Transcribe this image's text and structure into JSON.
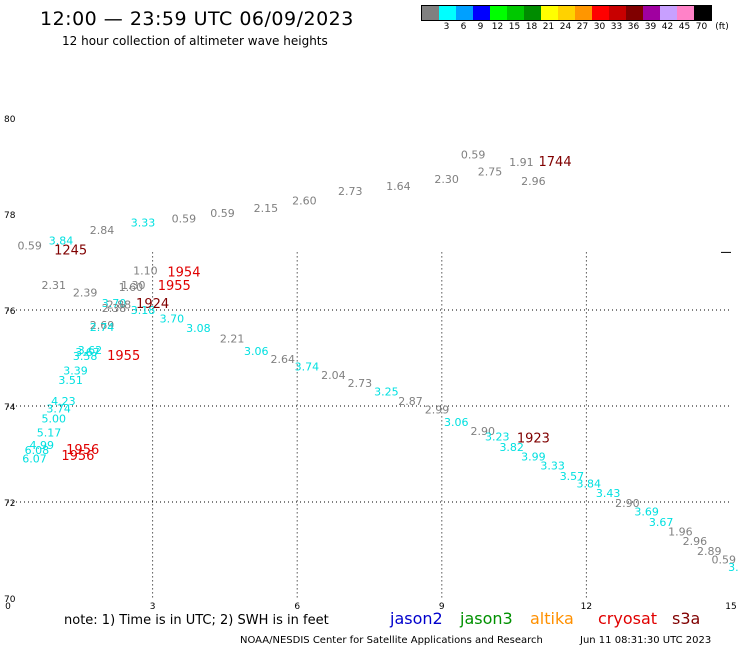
{
  "header": {
    "title": "12:00 — 23:59 UTC 06/09/2023",
    "subtitle": "12 hour collection of altimeter wave heights"
  },
  "legend": {
    "unit": "(ft)",
    "colors": [
      "#808080",
      "#00ffff",
      "#00a0ff",
      "#0000ff",
      "#00ff00",
      "#00c800",
      "#008c00",
      "#ffff00",
      "#ffd200",
      "#ff9600",
      "#ff0000",
      "#c80000",
      "#800000",
      "#a000a0",
      "#c8a0ff",
      "#ff82c8",
      "#000000"
    ],
    "labels": [
      "3",
      "6",
      "9",
      "12",
      "15",
      "18",
      "21",
      "24",
      "27",
      "30",
      "33",
      "36",
      "39",
      "42",
      "45",
      "70"
    ]
  },
  "map": {
    "lat_ticks": [
      "80",
      "78",
      "76",
      "74",
      "72",
      "70"
    ],
    "lon_ticks": [
      "0",
      "3",
      "6",
      "9",
      "12",
      "15"
    ],
    "colors": {
      "gray": "#808080",
      "cyan": "#00e0e0",
      "red": "#e00000",
      "darkred": "#800000"
    },
    "wave_heights": [
      {
        "v": "0.59",
        "c": "gray",
        "lon": 9.65,
        "lat": 79.16
      },
      {
        "v": "1.91",
        "c": "gray",
        "lon": 10.65,
        "lat": 79.0
      },
      {
        "v": "2.96",
        "c": "gray",
        "lon": 10.9,
        "lat": 78.6
      },
      {
        "v": "2.75",
        "c": "gray",
        "lon": 10.0,
        "lat": 78.8
      },
      {
        "v": "2.30",
        "c": "gray",
        "lon": 9.1,
        "lat": 78.65
      },
      {
        "v": "1.64",
        "c": "gray",
        "lon": 8.1,
        "lat": 78.5
      },
      {
        "v": "2.73",
        "c": "gray",
        "lon": 7.1,
        "lat": 78.4
      },
      {
        "v": "2.60",
        "c": "gray",
        "lon": 6.15,
        "lat": 78.2
      },
      {
        "v": "2.15",
        "c": "gray",
        "lon": 5.35,
        "lat": 78.04
      },
      {
        "v": "0.59",
        "c": "gray",
        "lon": 4.45,
        "lat": 77.94
      },
      {
        "v": "0.59",
        "c": "gray",
        "lon": 3.65,
        "lat": 77.82
      },
      {
        "v": "3.33",
        "c": "cyan",
        "lon": 2.8,
        "lat": 77.74
      },
      {
        "v": "2.84",
        "c": "gray",
        "lon": 1.95,
        "lat": 77.58
      },
      {
        "v": "3.84",
        "c": "cyan",
        "lon": 1.1,
        "lat": 77.36
      },
      {
        "v": "0.59",
        "c": "gray",
        "lon": 0.45,
        "lat": 77.26
      },
      {
        "v": "1.10",
        "c": "gray",
        "lon": 2.85,
        "lat": 76.74
      },
      {
        "v": "2.31",
        "c": "gray",
        "lon": 0.95,
        "lat": 76.44
      },
      {
        "v": "1.30",
        "c": "gray",
        "lon": 2.6,
        "lat": 76.44
      },
      {
        "v": "1.60",
        "c": "gray",
        "lon": 2.55,
        "lat": 76.4
      },
      {
        "v": "2.39",
        "c": "gray",
        "lon": 1.6,
        "lat": 76.28
      },
      {
        "v": "3.70",
        "c": "cyan",
        "lon": 2.2,
        "lat": 76.06
      },
      {
        "v": "2.88",
        "c": "gray",
        "lon": 2.3,
        "lat": 76.03
      },
      {
        "v": "2.38",
        "c": "gray",
        "lon": 2.2,
        "lat": 75.96
      },
      {
        "v": "3.18",
        "c": "cyan",
        "lon": 2.8,
        "lat": 75.92
      },
      {
        "v": "3.70",
        "c": "cyan",
        "lon": 3.4,
        "lat": 75.74
      },
      {
        "v": "2.69",
        "c": "gray",
        "lon": 1.95,
        "lat": 75.6
      },
      {
        "v": "2.74",
        "c": "cyan",
        "lon": 1.95,
        "lat": 75.56
      },
      {
        "v": "3.08",
        "c": "cyan",
        "lon": 3.95,
        "lat": 75.54
      },
      {
        "v": "2.21",
        "c": "gray",
        "lon": 4.65,
        "lat": 75.32
      },
      {
        "v": "3.62",
        "c": "cyan",
        "lon": 1.7,
        "lat": 75.08
      },
      {
        "v": "3.67",
        "c": "cyan",
        "lon": 1.65,
        "lat": 75.04
      },
      {
        "v": "3.06",
        "c": "cyan",
        "lon": 5.15,
        "lat": 75.06
      },
      {
        "v": "3.58",
        "c": "cyan",
        "lon": 1.6,
        "lat": 74.96
      },
      {
        "v": "2.64",
        "c": "gray",
        "lon": 5.7,
        "lat": 74.9
      },
      {
        "v": "3.74",
        "c": "cyan",
        "lon": 6.2,
        "lat": 74.74
      },
      {
        "v": "3.39",
        "c": "cyan",
        "lon": 1.4,
        "lat": 74.66
      },
      {
        "v": "2.04",
        "c": "gray",
        "lon": 6.75,
        "lat": 74.56
      },
      {
        "v": "3.51",
        "c": "cyan",
        "lon": 1.3,
        "lat": 74.46
      },
      {
        "v": "2.73",
        "c": "gray",
        "lon": 7.3,
        "lat": 74.4
      },
      {
        "v": "3.25",
        "c": "cyan",
        "lon": 7.85,
        "lat": 74.22
      },
      {
        "v": "4.23",
        "c": "cyan",
        "lon": 1.15,
        "lat": 74.02
      },
      {
        "v": "2.87",
        "c": "gray",
        "lon": 8.35,
        "lat": 74.02
      },
      {
        "v": "3.74",
        "c": "cyan",
        "lon": 1.05,
        "lat": 73.86
      },
      {
        "v": "2.99",
        "c": "gray",
        "lon": 8.9,
        "lat": 73.84
      },
      {
        "v": "5.00",
        "c": "cyan",
        "lon": 0.95,
        "lat": 73.66
      },
      {
        "v": "3.06",
        "c": "cyan",
        "lon": 9.3,
        "lat": 73.58
      },
      {
        "v": "5.17",
        "c": "cyan",
        "lon": 0.85,
        "lat": 73.36
      },
      {
        "v": "2.90",
        "c": "gray",
        "lon": 9.85,
        "lat": 73.4
      },
      {
        "v": "3.23",
        "c": "cyan",
        "lon": 10.15,
        "lat": 73.28
      },
      {
        "v": "4.99",
        "c": "cyan",
        "lon": 0.7,
        "lat": 73.1
      },
      {
        "v": "6.08",
        "c": "cyan",
        "lon": 0.6,
        "lat": 73.0
      },
      {
        "v": "6.07",
        "c": "cyan",
        "lon": 0.55,
        "lat": 72.82
      },
      {
        "v": "3.82",
        "c": "cyan",
        "lon": 10.45,
        "lat": 73.06
      },
      {
        "v": "3.99",
        "c": "cyan",
        "lon": 10.9,
        "lat": 72.86
      },
      {
        "v": "3.33",
        "c": "cyan",
        "lon": 11.3,
        "lat": 72.68
      },
      {
        "v": "3.57",
        "c": "cyan",
        "lon": 11.7,
        "lat": 72.46
      },
      {
        "v": "3.84",
        "c": "cyan",
        "lon": 12.05,
        "lat": 72.3
      },
      {
        "v": "3.43",
        "c": "cyan",
        "lon": 12.45,
        "lat": 72.1
      },
      {
        "v": "2.90",
        "c": "gray",
        "lon": 12.85,
        "lat": 71.9
      },
      {
        "v": "3.69",
        "c": "cyan",
        "lon": 13.25,
        "lat": 71.72
      },
      {
        "v": "3.67",
        "c": "cyan",
        "lon": 13.55,
        "lat": 71.5
      },
      {
        "v": "1.96",
        "c": "gray",
        "lon": 13.95,
        "lat": 71.3
      },
      {
        "v": "2.96",
        "c": "gray",
        "lon": 14.25,
        "lat": 71.1
      },
      {
        "v": "2.89",
        "c": "gray",
        "lon": 14.55,
        "lat": 70.9
      },
      {
        "v": "0.59",
        "c": "gray",
        "lon": 14.85,
        "lat": 70.72
      },
      {
        "v": "3.",
        "c": "cyan",
        "lon": 15.05,
        "lat": 70.56
      }
    ],
    "pass_times": [
      {
        "t": "1744",
        "c": "darkred",
        "lon": 11.35,
        "lat": 79.0
      },
      {
        "t": "1245",
        "c": "darkred",
        "lon": 1.3,
        "lat": 77.16
      },
      {
        "t": "1954",
        "c": "red",
        "lon": 3.65,
        "lat": 76.7
      },
      {
        "t": "1955",
        "c": "red",
        "lon": 3.45,
        "lat": 76.42
      },
      {
        "t": "1924",
        "c": "darkred",
        "lon": 3.0,
        "lat": 76.04
      },
      {
        "t": "1955",
        "c": "red",
        "lon": 2.4,
        "lat": 74.96
      },
      {
        "t": "1956",
        "c": "red",
        "lon": 1.55,
        "lat": 73.0
      },
      {
        "t": "1956",
        "c": "red",
        "lon": 1.45,
        "lat": 72.88
      },
      {
        "t": "1923",
        "c": "darkred",
        "lon": 10.9,
        "lat": 73.24
      }
    ]
  },
  "footer": {
    "note": "note:  1) Time is in UTC;  2) SWH is in feet",
    "satellites": [
      {
        "name": "jason2",
        "color": "#0000cc"
      },
      {
        "name": "jason3",
        "color": "#009000"
      },
      {
        "name": "altika",
        "color": "#ff9000"
      },
      {
        "name": "cryosat",
        "color": "#e00000"
      },
      {
        "name": "s3a",
        "color": "#800000"
      }
    ],
    "credit": "NOAA/NESDIS Center for Satellite Applications and Research",
    "timestamp": "Jun 11 08:31:30 UTC 2023"
  }
}
